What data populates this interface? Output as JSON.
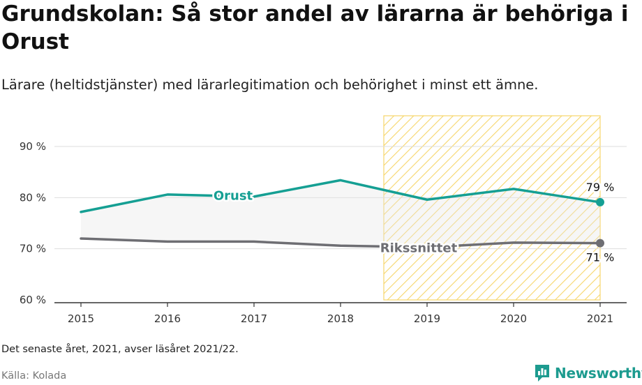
{
  "header": {
    "title": "Grundskolan: Så stor andel av lärarna är behöriga i Orust",
    "subtitle": "Lärare (heltidstjänster) med lärarlegitimation och behörighet i minst ett ämne."
  },
  "footer": {
    "note": "Det senaste året, 2021, avser läsåret 2021/22.",
    "source": "Källa: Kolada",
    "brand": "Newsworthy"
  },
  "colors": {
    "orust": "#159f93",
    "riks": "#6e6e73",
    "highlight": "#f6d66b",
    "brand": "#1d9b8f"
  },
  "chart_data": {
    "type": "line",
    "x": [
      2015,
      2016,
      2017,
      2018,
      2019,
      2020,
      2021
    ],
    "xtick_labels": [
      "2015",
      "2016",
      "2017",
      "2018",
      "2019",
      "2020",
      "2021"
    ],
    "ylim": [
      60,
      96
    ],
    "yticks": [
      60,
      70,
      80,
      90
    ],
    "ytick_labels": [
      "60 %",
      "70 %",
      "80 %",
      "90 %"
    ],
    "grid": true,
    "highlight_range": [
      2018.5,
      2021
    ],
    "series": [
      {
        "name": "Orust",
        "values": [
          77.2,
          80.6,
          80.2,
          83.4,
          79.6,
          81.7,
          79.1
        ],
        "end_label": "79 %"
      },
      {
        "name": "Rikssnittet",
        "values": [
          72.0,
          71.4,
          71.4,
          70.6,
          70.3,
          71.2,
          71.1
        ],
        "end_label": "71 %"
      }
    ]
  }
}
